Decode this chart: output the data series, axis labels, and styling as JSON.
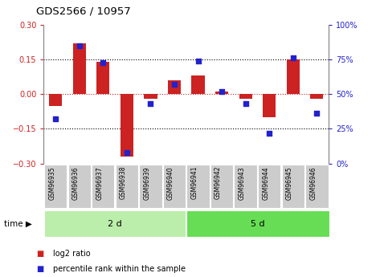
{
  "title": "GDS2566 / 10957",
  "samples": [
    "GSM96935",
    "GSM96936",
    "GSM96937",
    "GSM96938",
    "GSM96939",
    "GSM96940",
    "GSM96941",
    "GSM96942",
    "GSM96943",
    "GSM96944",
    "GSM96945",
    "GSM96946"
  ],
  "log2_ratio": [
    -0.05,
    0.22,
    0.14,
    -0.27,
    -0.02,
    0.06,
    0.08,
    0.01,
    -0.02,
    -0.1,
    0.15,
    -0.02
  ],
  "percentile_rank": [
    32,
    85,
    73,
    8,
    43,
    57,
    74,
    52,
    43,
    22,
    76,
    36
  ],
  "group1_label": "2 d",
  "group2_label": "5 d",
  "group1_count": 6,
  "group2_count": 6,
  "ylim_left": [
    -0.3,
    0.3
  ],
  "ylim_right": [
    0,
    100
  ],
  "yticks_left": [
    -0.3,
    -0.15,
    0,
    0.15,
    0.3
  ],
  "yticks_right": [
    0,
    25,
    50,
    75,
    100
  ],
  "bar_color": "#cc2222",
  "dot_color": "#2222cc",
  "legend_bar_label": "log2 ratio",
  "legend_dot_label": "percentile rank within the sample",
  "bg_color": "#ffffff",
  "plot_bg": "#ffffff",
  "group1_bg": "#bbeeaa",
  "group2_bg": "#66dd55",
  "sample_bg": "#cccccc",
  "border_color": "#999999"
}
